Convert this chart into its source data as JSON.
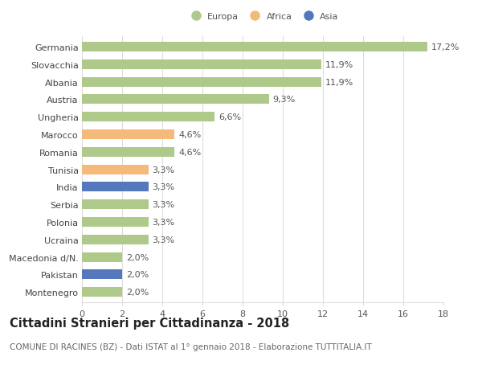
{
  "countries": [
    "Germania",
    "Slovacchia",
    "Albania",
    "Austria",
    "Ungheria",
    "Marocco",
    "Romania",
    "Tunisia",
    "India",
    "Serbia",
    "Polonia",
    "Ucraina",
    "Macedonia d/N.",
    "Pakistan",
    "Montenegro"
  ],
  "values": [
    17.2,
    11.9,
    11.9,
    9.3,
    6.6,
    4.6,
    4.6,
    3.3,
    3.3,
    3.3,
    3.3,
    3.3,
    2.0,
    2.0,
    2.0
  ],
  "labels": [
    "17,2%",
    "11,9%",
    "11,9%",
    "9,3%",
    "6,6%",
    "4,6%",
    "4,6%",
    "3,3%",
    "3,3%",
    "3,3%",
    "3,3%",
    "3,3%",
    "2,0%",
    "2,0%",
    "2,0%"
  ],
  "continents": [
    "Europa",
    "Europa",
    "Europa",
    "Europa",
    "Europa",
    "Africa",
    "Europa",
    "Africa",
    "Asia",
    "Europa",
    "Europa",
    "Europa",
    "Europa",
    "Asia",
    "Europa"
  ],
  "colors": {
    "Europa": "#aec98a",
    "Africa": "#f5b97a",
    "Asia": "#5577bb"
  },
  "xlim": [
    0,
    18
  ],
  "xticks": [
    0,
    2,
    4,
    6,
    8,
    10,
    12,
    14,
    16,
    18
  ],
  "title": "Cittadini Stranieri per Cittadinanza - 2018",
  "subtitle": "COMUNE DI RACINES (BZ) - Dati ISTAT al 1° gennaio 2018 - Elaborazione TUTTITALIA.IT",
  "background_color": "#ffffff",
  "grid_color": "#dddddd",
  "bar_height": 0.55,
  "label_fontsize": 8.0,
  "tick_fontsize": 8.0,
  "title_fontsize": 10.5,
  "subtitle_fontsize": 7.5
}
